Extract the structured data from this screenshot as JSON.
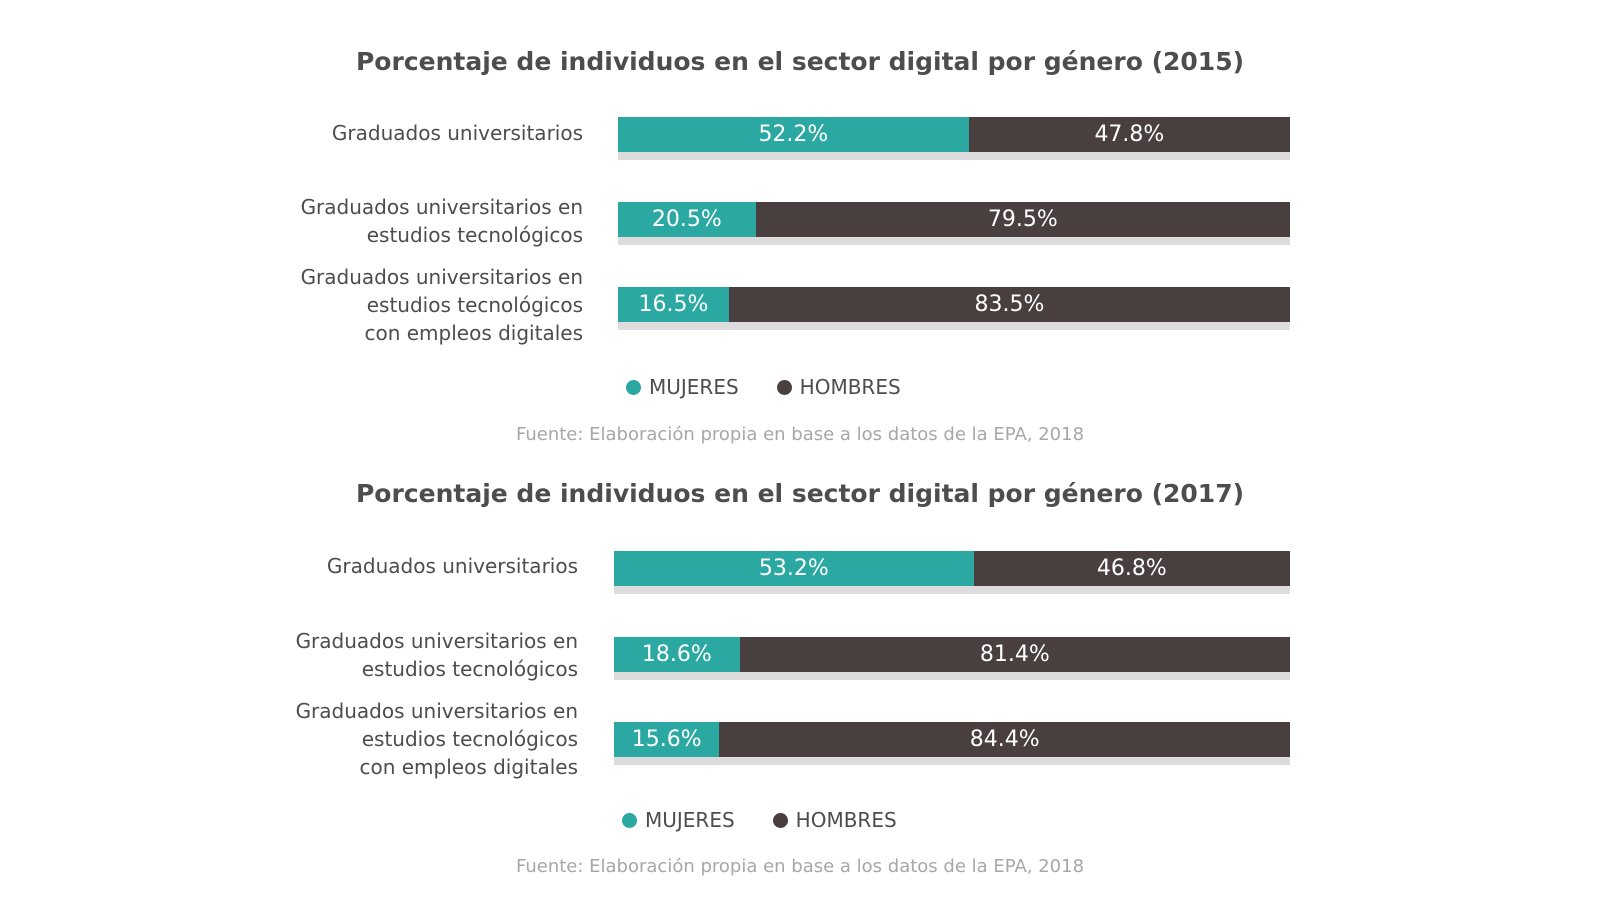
{
  "colors": {
    "mujeres": "#2aa8a1",
    "hombres": "#4a3f3f"
  },
  "legend": {
    "mujeres": "MUJERES",
    "hombres": "HOMBRES"
  },
  "source": "Fuente: Elaboración propia en base a los datos de la EPA, 2018",
  "chart_data": [
    {
      "type": "bar",
      "title": "Porcentaje de individuos en el sector digital por género (2015)",
      "categories": [
        "Graduados universitarios",
        "Graduados universitarios en\nestudios tecnológicos",
        "Graduados universitarios en\nestudios tecnológicos\ncon empleos digitales"
      ],
      "stacked": true,
      "series": [
        {
          "name": "MUJERES",
          "values": [
            52.2,
            20.5,
            16.5
          ],
          "labels": [
            "52.2%",
            "20.5%",
            "16.5%"
          ]
        },
        {
          "name": "HOMBRES",
          "values": [
            47.8,
            79.5,
            83.5
          ],
          "labels": [
            "47.8%",
            "79.5%",
            "83.5%"
          ]
        }
      ],
      "xlim": [
        0,
        100
      ],
      "legend_position": "bottom",
      "grid": false
    },
    {
      "type": "bar",
      "title": "Porcentaje de individuos en el sector digital por género (2017)",
      "categories": [
        "Graduados universitarios",
        "Graduados universitarios en\nestudios tecnológicos",
        "Graduados universitarios en\nestudios tecnológicos\ncon empleos digitales"
      ],
      "stacked": true,
      "series": [
        {
          "name": "MUJERES",
          "values": [
            53.2,
            18.6,
            15.6
          ],
          "labels": [
            "53.2%",
            "18.6%",
            "15.6%"
          ]
        },
        {
          "name": "HOMBRES",
          "values": [
            46.8,
            81.4,
            84.4
          ],
          "labels": [
            "46.8%",
            "81.4%",
            "84.4%"
          ]
        }
      ],
      "xlim": [
        0,
        100
      ],
      "legend_position": "bottom",
      "grid": false
    }
  ]
}
